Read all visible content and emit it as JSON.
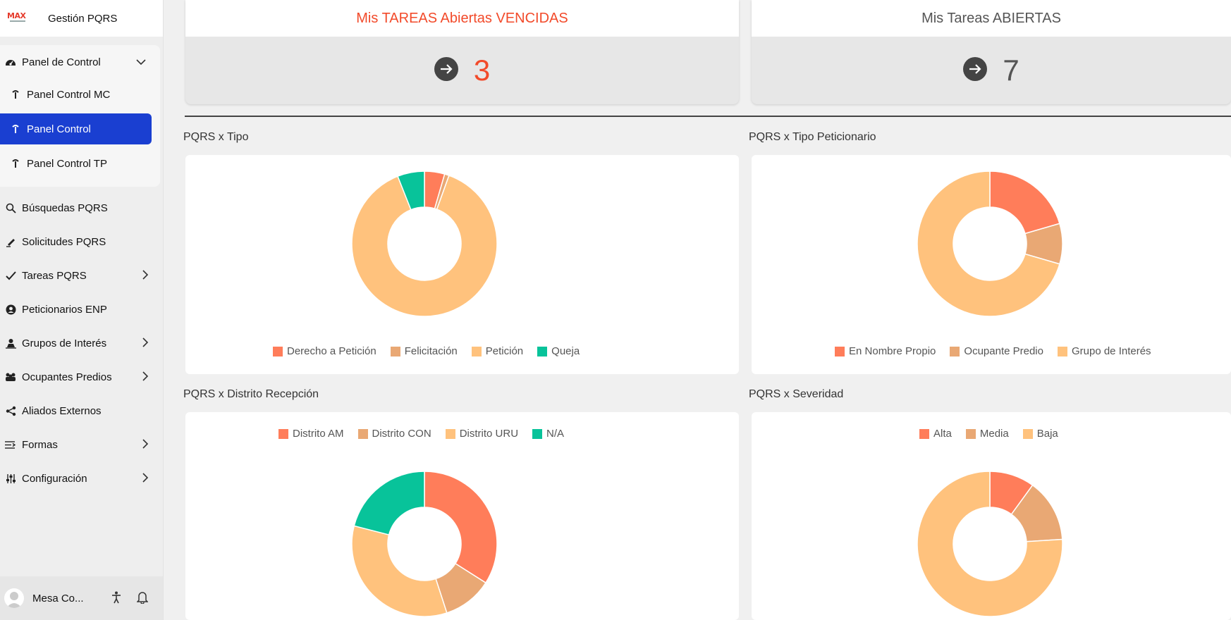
{
  "app": {
    "title": "Gestión PQRS",
    "logo_text": "MAX"
  },
  "sidebar": {
    "panel_group": {
      "label": "Panel de Control",
      "items": [
        {
          "label": "Panel Control MC",
          "active": false
        },
        {
          "label": "Panel Control",
          "active": true
        },
        {
          "label": "Panel Control TP",
          "active": false
        }
      ]
    },
    "items": [
      {
        "label": "Búsquedas PQRS",
        "icon": "search-icon",
        "has_children": false
      },
      {
        "label": "Solicitudes PQRS",
        "icon": "pen-icon",
        "has_children": false
      },
      {
        "label": "Tareas PQRS",
        "icon": "check-icon",
        "has_children": true
      },
      {
        "label": "Peticionarios ENP",
        "icon": "user-circle-icon",
        "has_children": false
      },
      {
        "label": "Grupos de Interés",
        "icon": "group-icon",
        "has_children": true
      },
      {
        "label": "Ocupantes Predios",
        "icon": "people-icon",
        "has_children": true
      },
      {
        "label": "Aliados Externos",
        "icon": "share-icon",
        "has_children": false
      },
      {
        "label": "Formas",
        "icon": "form-icon",
        "has_children": true
      },
      {
        "label": "Configuración",
        "icon": "sliders-icon",
        "has_children": true
      }
    ],
    "user": {
      "name": "Mesa Co..."
    }
  },
  "kpis": [
    {
      "title": "Mis TAREAS Abiertas VENCIDAS",
      "value": "3",
      "color": "#f24a2a"
    },
    {
      "title": "Mis Tareas ABIERTAS",
      "value": "7",
      "color": "#555555"
    }
  ],
  "colors": {
    "accent": "#1a3fd1",
    "orange": "#ff7d5a",
    "tan": "#e9a874",
    "peach": "#ffc27d",
    "green": "#08c39a"
  },
  "chart_data": [
    {
      "type": "pie",
      "title": "PQRS x Tipo",
      "categories": [
        "Derecho a Petición",
        "Felicitación",
        "Petición",
        "Queja"
      ],
      "values": [
        4.5,
        1,
        88.5,
        6
      ],
      "colors": [
        "#ff7d5a",
        "#e9a874",
        "#ffc27d",
        "#08c39a"
      ],
      "legend": "bottom"
    },
    {
      "type": "pie",
      "title": "PQRS x Tipo Peticionario",
      "categories": [
        "En Nombre Propio",
        "Ocupante Predio",
        "Grupo de Interés"
      ],
      "values": [
        20.5,
        9,
        70.5
      ],
      "colors": [
        "#ff7d5a",
        "#e9a874",
        "#ffc27d"
      ],
      "legend": "bottom"
    },
    {
      "type": "pie",
      "title": "PQRS x Distrito Recepción",
      "categories": [
        "Distrito AM",
        "Distrito CON",
        "Distrito URU",
        "N/A"
      ],
      "values": [
        34,
        11,
        34,
        21
      ],
      "colors": [
        "#ff7d5a",
        "#e9a874",
        "#ffc27d",
        "#08c39a"
      ],
      "legend": "top"
    },
    {
      "type": "pie",
      "title": "PQRS x Severidad",
      "categories": [
        "Alta",
        "Media",
        "Baja"
      ],
      "values": [
        10,
        14,
        76
      ],
      "colors": [
        "#ff7d5a",
        "#e9a874",
        "#ffc27d"
      ],
      "legend": "top"
    }
  ]
}
